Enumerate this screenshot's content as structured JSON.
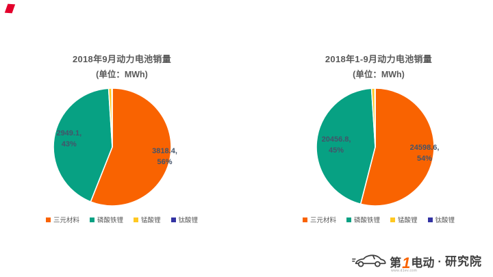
{
  "corner_accent": {
    "color": "#e3002b"
  },
  "chart_data": [
    {
      "type": "pie",
      "title": "2018年9月动力电池销量",
      "subtitle": "(单位：MWh)",
      "legend_position": "bottom",
      "start_angle_deg": 0,
      "slices": [
        {
          "name": "三元材料",
          "value": 3818.4,
          "pct": "56%",
          "share_pct": 56,
          "color": "#f96301",
          "data_label_lines": [
            "3818.4,",
            "56%"
          ],
          "label_at": [
            0.86,
            0.17
          ]
        },
        {
          "name": "磷酸铁锂",
          "value": 2949.1,
          "pct": "43%",
          "share_pct": 43,
          "color": "#07a183",
          "data_label_lines": [
            "2949.1,",
            "43%"
          ],
          "label_at": [
            -0.71,
            -0.12
          ]
        },
        {
          "name": "锰酸锂",
          "share_pct": 0.85,
          "color": "#ffc822"
        },
        {
          "name": "钛酸锂",
          "share_pct": 0.15,
          "color": "#3333a3"
        }
      ]
    },
    {
      "type": "pie",
      "title": "2018年1-9月动力电池销量",
      "subtitle": "(单位：MWh)",
      "legend_position": "bottom",
      "start_angle_deg": 0,
      "slices": [
        {
          "name": "三元材料",
          "value": 24598.6,
          "pct": "54%",
          "share_pct": 54,
          "color": "#f96301",
          "data_label_lines": [
            "24598.6,",
            "54%"
          ],
          "label_at": [
            0.81,
            0.11
          ]
        },
        {
          "name": "磷酸铁锂",
          "value": 20456.8,
          "pct": "45%",
          "share_pct": 45,
          "color": "#07a183",
          "data_label_lines": [
            "20456.8,",
            "45%"
          ],
          "label_at": [
            -0.64,
            -0.02
          ]
        },
        {
          "name": "锰酸锂",
          "share_pct": 0.9,
          "color": "#ffc822"
        },
        {
          "name": "钛酸锂",
          "share_pct": 0.1,
          "color": "#3333a3"
        }
      ]
    }
  ],
  "logo": {
    "text_before_one": "第",
    "one": "1",
    "text_after_one": "电动",
    "dot": "·",
    "org": "研究院",
    "url": "www.d1ev.com"
  }
}
